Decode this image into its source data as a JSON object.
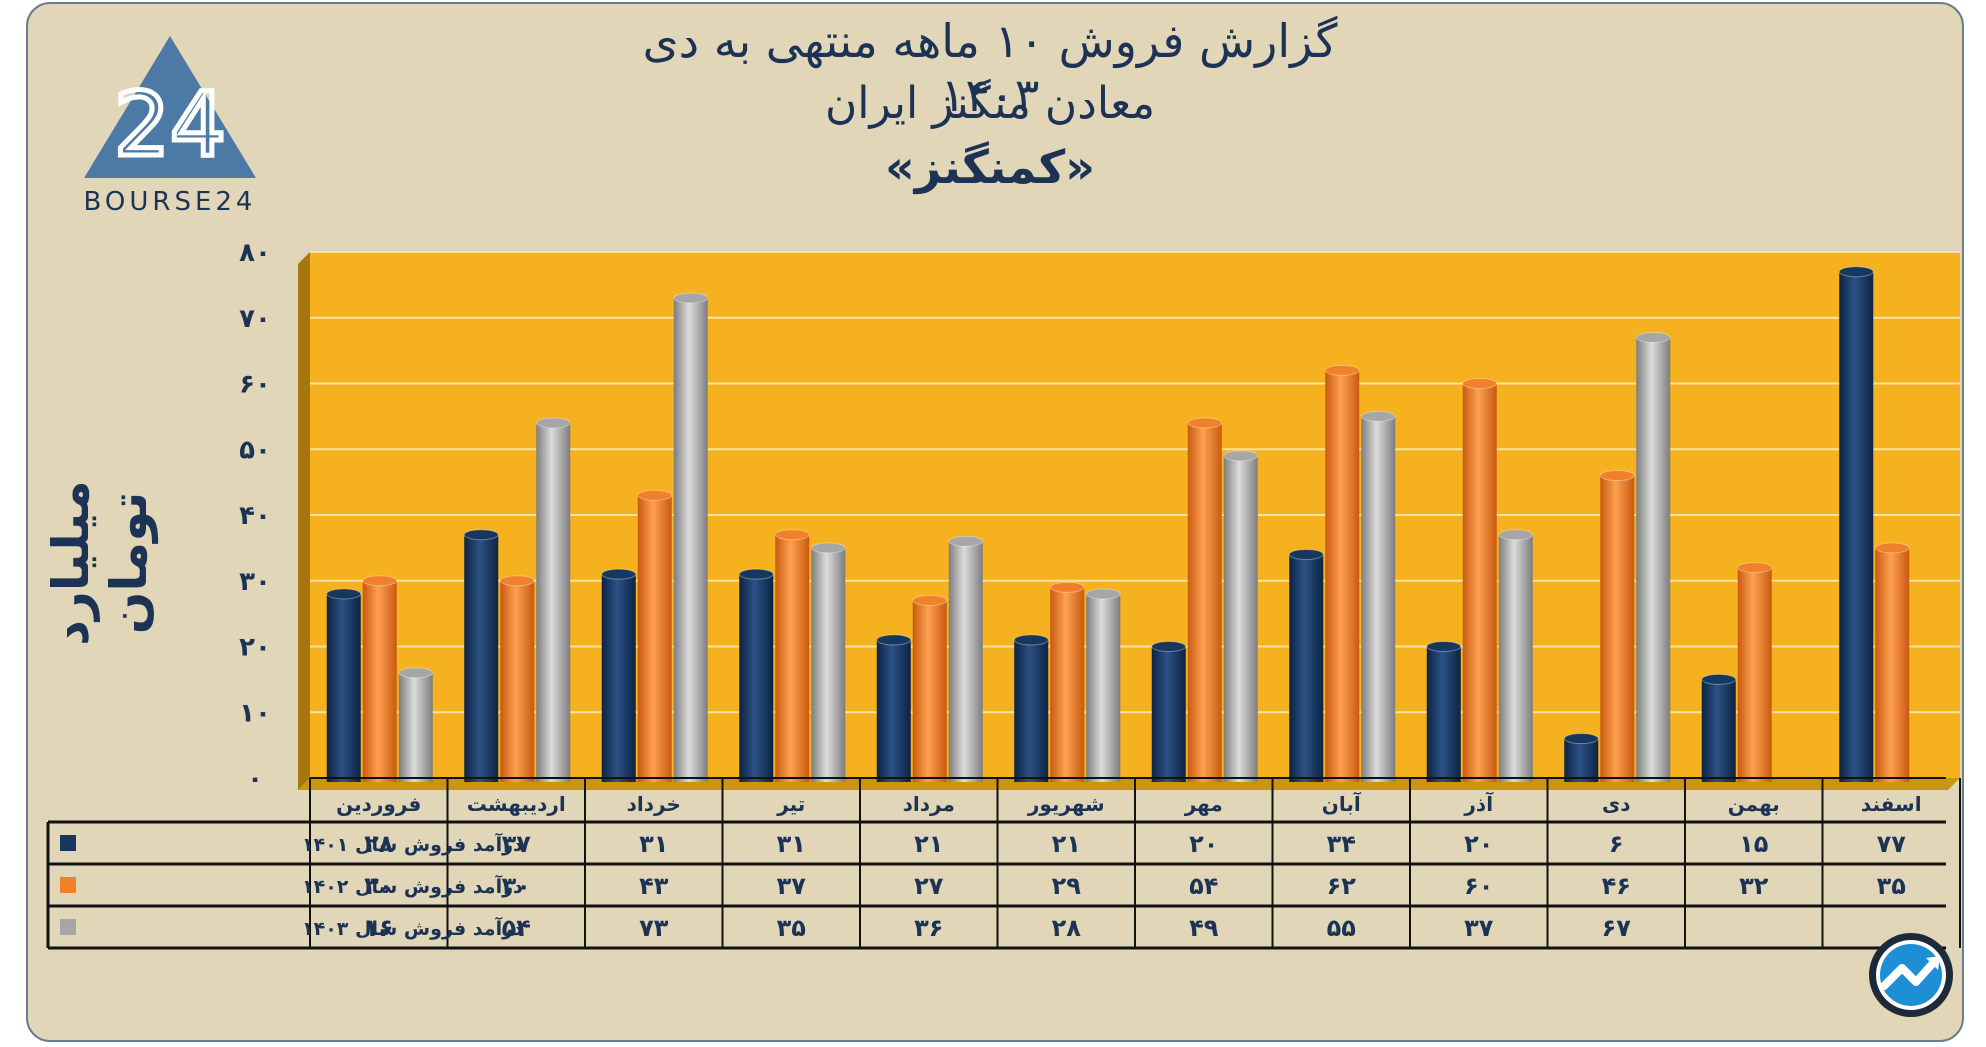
{
  "title": {
    "line1": "گزارش  فروش ۱۰ ماهه منتهی به دی ۱۴۰۳",
    "line2": "معادن منگنز ایران",
    "line3": "«کمنگنز»"
  },
  "logo": {
    "text": "BOURSE24",
    "mark": "24"
  },
  "badge": {
    "icon": "trend-arrow-icon"
  },
  "chart_data": {
    "type": "bar",
    "ylabel": "میلیارد تومان",
    "ylim": [
      0,
      80
    ],
    "yticks": [
      0,
      10,
      20,
      30,
      40,
      50,
      60,
      70,
      80
    ],
    "ytick_labels": [
      "۰",
      "۱۰",
      "۲۰",
      "۳۰",
      "۴۰",
      "۵۰",
      "۶۰",
      "۷۰",
      "۸۰"
    ],
    "grid": true,
    "categories": [
      "فروردین",
      "اردیبهشت",
      "خرداد",
      "تیر",
      "مرداد",
      "شهریور",
      "مهر",
      "آبان",
      "آذر",
      "دی",
      "بهمن",
      "اسفند"
    ],
    "series": [
      {
        "name": "درآمد فروش سال ۱۴۰۱",
        "color": "#17375e",
        "values": [
          28,
          37,
          31,
          31,
          21,
          21,
          20,
          34,
          20,
          6,
          15,
          77
        ],
        "labels": [
          "۲۸",
          "۳۷",
          "۳۱",
          "۳۱",
          "۲۱",
          "۲۱",
          "۲۰",
          "۳۴",
          "۲۰",
          "۶",
          "۱۵",
          "۷۷"
        ]
      },
      {
        "name": "درآمد فروش سال ۱۴۰۲",
        "color": "#f0802a",
        "values": [
          30,
          30,
          43,
          37,
          27,
          29,
          54,
          62,
          60,
          46,
          32,
          35
        ],
        "labels": [
          "۳۰",
          "۳۰",
          "۴۳",
          "۳۷",
          "۲۷",
          "۲۹",
          "۵۴",
          "۶۲",
          "۶۰",
          "۴۶",
          "۳۲",
          "۳۵"
        ]
      },
      {
        "name": "درآمد فروش سال ۱۴۰۳",
        "color": "#a6a6a6",
        "values": [
          16,
          54,
          73,
          35,
          36,
          28,
          49,
          55,
          37,
          67,
          null,
          null
        ],
        "labels": [
          "۱۶",
          "۵۴",
          "۷۳",
          "۳۵",
          "۳۶",
          "۲۸",
          "۴۹",
          "۵۵",
          "۳۷",
          "۶۷",
          "",
          ""
        ]
      }
    ],
    "colors": {
      "plot_background": "#f5b11e",
      "grid": "#f9e3a4",
      "frame": "#e2d6b8",
      "text": "#1c3355"
    }
  }
}
